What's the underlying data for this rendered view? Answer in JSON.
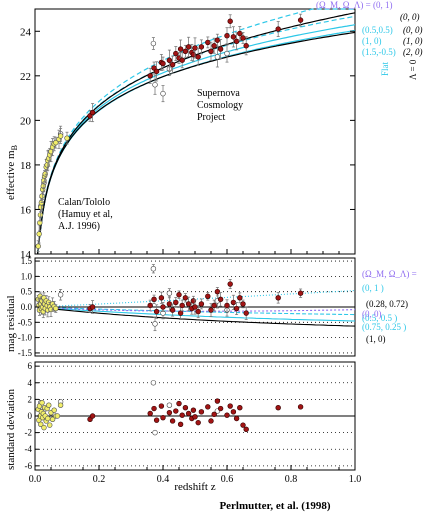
{
  "figure": {
    "credit": "Perlmutter, et al. (1998)",
    "colors": {
      "cyan": "#2ec8e8",
      "violet": "#8f6cf0",
      "yellow_point": "#f1ee6a",
      "red_point": "#a11414",
      "open_point": "#ffffff",
      "error_bar": "#7b7b7b",
      "axis": "#000000"
    }
  },
  "chart_data": [
    {
      "type": "scatter",
      "panel": "top",
      "ylabel": "effective m",
      "ylabel_sub": "B",
      "xlim": [
        0.0,
        1.0
      ],
      "ylim": [
        14,
        25
      ],
      "yticks": [
        14,
        16,
        18,
        20,
        22,
        24
      ],
      "annotations": {
        "scp": [
          "Supernova",
          "Cosmology",
          "Project"
        ],
        "calan": [
          "Calan/Tololo",
          "(Hamuy et al,",
          "A.J. 1996)"
        ]
      },
      "legend": {
        "header": "(Ω_M, Ω_Λ) = (0, 1)",
        "flat_label": "Flat",
        "lambda0_label": "Λ = 0",
        "entries": [
          {
            "left": "(0.5,0.5)",
            "right": "(0, 0)"
          },
          {
            "left": "(1, 0)",
            "right": "(1, 0)"
          },
          {
            "left": "(1.5,-0.5)",
            "right": "(2, 0)"
          }
        ],
        "top_right": "(0, 0)"
      },
      "curves": [
        {
          "name": "(0, 1)",
          "style": "cyan-dashed",
          "omega_m": 0.0,
          "omega_l": 1.0
        },
        {
          "name": "(0.5, 0.5)",
          "style": "cyan-dashed",
          "omega_m": 0.5,
          "omega_l": 0.5
        },
        {
          "name": "(1, 0)",
          "style": "cyan-solid",
          "omega_m": 1.0,
          "omega_l": 0.0
        },
        {
          "name": "(1.5, -0.5)",
          "style": "cyan-solid",
          "omega_m": 1.5,
          "omega_l": -0.5
        },
        {
          "name": "(0, 0)",
          "style": "black-solid",
          "omega_m": 0.0,
          "omega_l": 0.0
        },
        {
          "name": "(2, 0)",
          "style": "black-solid",
          "omega_m": 2.0,
          "omega_l": 0.0
        }
      ],
      "points_low_z": [
        {
          "x": 0.01,
          "y": 14.35
        },
        {
          "x": 0.013,
          "y": 14.9
        },
        {
          "x": 0.015,
          "y": 15.4
        },
        {
          "x": 0.017,
          "y": 15.75
        },
        {
          "x": 0.018,
          "y": 16.1
        },
        {
          "x": 0.02,
          "y": 16.3
        },
        {
          "x": 0.022,
          "y": 16.6
        },
        {
          "x": 0.024,
          "y": 16.9
        },
        {
          "x": 0.026,
          "y": 17.05
        },
        {
          "x": 0.028,
          "y": 17.3
        },
        {
          "x": 0.03,
          "y": 17.5
        },
        {
          "x": 0.032,
          "y": 17.6
        },
        {
          "x": 0.035,
          "y": 17.9
        },
        {
          "x": 0.038,
          "y": 18.0
        },
        {
          "x": 0.04,
          "y": 18.2
        },
        {
          "x": 0.043,
          "y": 18.3
        },
        {
          "x": 0.046,
          "y": 18.45
        },
        {
          "x": 0.05,
          "y": 18.6
        },
        {
          "x": 0.055,
          "y": 18.8
        },
        {
          "x": 0.06,
          "y": 18.95
        },
        {
          "x": 0.065,
          "y": 19.0
        },
        {
          "x": 0.075,
          "y": 19.15
        },
        {
          "x": 0.08,
          "y": 19.3
        },
        {
          "x": 0.1,
          "y": 19.2
        }
      ],
      "points_high_z": [
        {
          "x": 0.172,
          "y": 20.2
        },
        {
          "x": 0.18,
          "y": 20.35
        },
        {
          "x": 0.36,
          "y": 22.0
        },
        {
          "x": 0.372,
          "y": 22.35
        },
        {
          "x": 0.38,
          "y": 22.2
        },
        {
          "x": 0.395,
          "y": 22.6
        },
        {
          "x": 0.4,
          "y": 22.55
        },
        {
          "x": 0.42,
          "y": 22.7
        },
        {
          "x": 0.43,
          "y": 22.5
        },
        {
          "x": 0.44,
          "y": 23.0
        },
        {
          "x": 0.45,
          "y": 22.8
        },
        {
          "x": 0.455,
          "y": 23.2
        },
        {
          "x": 0.46,
          "y": 22.7
        },
        {
          "x": 0.47,
          "y": 23.1
        },
        {
          "x": 0.48,
          "y": 23.3
        },
        {
          "x": 0.49,
          "y": 23.05
        },
        {
          "x": 0.495,
          "y": 22.95
        },
        {
          "x": 0.5,
          "y": 23.25
        },
        {
          "x": 0.51,
          "y": 22.85
        },
        {
          "x": 0.52,
          "y": 23.3
        },
        {
          "x": 0.54,
          "y": 23.5
        },
        {
          "x": 0.55,
          "y": 23.1
        },
        {
          "x": 0.56,
          "y": 23.35
        },
        {
          "x": 0.57,
          "y": 23.6
        },
        {
          "x": 0.58,
          "y": 23.2
        },
        {
          "x": 0.6,
          "y": 23.8
        },
        {
          "x": 0.61,
          "y": 24.45
        },
        {
          "x": 0.62,
          "y": 23.75
        },
        {
          "x": 0.63,
          "y": 23.55
        },
        {
          "x": 0.64,
          "y": 23.9
        },
        {
          "x": 0.65,
          "y": 23.7
        },
        {
          "x": 0.66,
          "y": 23.35
        },
        {
          "x": 0.76,
          "y": 24.1
        },
        {
          "x": 0.83,
          "y": 24.5
        }
      ],
      "points_open": [
        {
          "x": 0.018,
          "y": 16.15
        },
        {
          "x": 0.028,
          "y": 17.2
        },
        {
          "x": 0.08,
          "y": 19.4
        },
        {
          "x": 0.37,
          "y": 23.45
        },
        {
          "x": 0.375,
          "y": 21.6
        },
        {
          "x": 0.4,
          "y": 21.2
        },
        {
          "x": 0.42,
          "y": 22.3
        },
        {
          "x": 0.57,
          "y": 22.85
        },
        {
          "x": 0.6,
          "y": 23.0
        }
      ]
    },
    {
      "type": "scatter",
      "panel": "middle",
      "ylabel": "mag residual",
      "xlim": [
        0.0,
        1.0
      ],
      "ylim": [
        -1.6,
        1.6
      ],
      "yticks": [
        -1.5,
        -1.0,
        -0.5,
        0.0,
        0.5,
        1.0,
        1.5
      ],
      "legend": {
        "header": "(Ω_M, Ω_Λ) =",
        "entries": [
          {
            "text": "(0,      1 )",
            "color": "cyan"
          },
          {
            "text": "(0.28,   0.72)",
            "color": "black"
          },
          {
            "text": "(0.5,    0.5 )",
            "color": "cyan"
          },
          {
            "text": "(0,      0)",
            "color": "violet"
          },
          {
            "text": "(0.75,   0.25 )",
            "color": "cyan"
          },
          {
            "text": "(1,      0)",
            "color": "black"
          }
        ]
      },
      "points_low_z": [
        {
          "x": 0.01,
          "y": 0.25
        },
        {
          "x": 0.012,
          "y": 0.05
        },
        {
          "x": 0.014,
          "y": -0.1
        },
        {
          "x": 0.016,
          "y": 0.35
        },
        {
          "x": 0.018,
          "y": 0.1
        },
        {
          "x": 0.02,
          "y": -0.05
        },
        {
          "x": 0.022,
          "y": 0.2
        },
        {
          "x": 0.024,
          "y": 0.0
        },
        {
          "x": 0.026,
          "y": -0.15
        },
        {
          "x": 0.028,
          "y": 0.3
        },
        {
          "x": 0.03,
          "y": 0.1
        },
        {
          "x": 0.032,
          "y": -0.05
        },
        {
          "x": 0.035,
          "y": 0.2
        },
        {
          "x": 0.038,
          "y": 0.05
        },
        {
          "x": 0.04,
          "y": -0.1
        },
        {
          "x": 0.043,
          "y": 0.15
        },
        {
          "x": 0.046,
          "y": 0.0
        },
        {
          "x": 0.05,
          "y": -0.08
        },
        {
          "x": 0.055,
          "y": 0.1
        },
        {
          "x": 0.06,
          "y": 0.02
        },
        {
          "x": 0.065,
          "y": -0.05
        }
      ],
      "points_high_z": [
        {
          "x": 0.172,
          "y": -0.05
        },
        {
          "x": 0.18,
          "y": 0.0
        },
        {
          "x": 0.36,
          "y": 0.05
        },
        {
          "x": 0.372,
          "y": 0.25
        },
        {
          "x": 0.38,
          "y": -0.15
        },
        {
          "x": 0.395,
          "y": 0.3
        },
        {
          "x": 0.4,
          "y": 0.0
        },
        {
          "x": 0.42,
          "y": 0.1
        },
        {
          "x": 0.43,
          "y": -0.1
        },
        {
          "x": 0.44,
          "y": 0.15
        },
        {
          "x": 0.45,
          "y": 0.4
        },
        {
          "x": 0.455,
          "y": -0.2
        },
        {
          "x": 0.46,
          "y": 0.05
        },
        {
          "x": 0.47,
          "y": 0.3
        },
        {
          "x": 0.48,
          "y": 0.1
        },
        {
          "x": 0.49,
          "y": -0.05
        },
        {
          "x": 0.495,
          "y": 0.2
        },
        {
          "x": 0.5,
          "y": 0.0
        },
        {
          "x": 0.51,
          "y": -0.15
        },
        {
          "x": 0.52,
          "y": 0.1
        },
        {
          "x": 0.54,
          "y": 0.35
        },
        {
          "x": 0.55,
          "y": -0.1
        },
        {
          "x": 0.56,
          "y": 0.05
        },
        {
          "x": 0.57,
          "y": 0.5
        },
        {
          "x": 0.58,
          "y": 0.25
        },
        {
          "x": 0.6,
          "y": 0.05
        },
        {
          "x": 0.61,
          "y": 0.75
        },
        {
          "x": 0.62,
          "y": 0.15
        },
        {
          "x": 0.63,
          "y": -0.05
        },
        {
          "x": 0.64,
          "y": 0.3
        },
        {
          "x": 0.65,
          "y": 0.1
        },
        {
          "x": 0.66,
          "y": -0.2
        },
        {
          "x": 0.76,
          "y": 0.3
        },
        {
          "x": 0.83,
          "y": 0.45
        }
      ],
      "points_open": [
        {
          "x": 0.018,
          "y": 0.3
        },
        {
          "x": 0.028,
          "y": 0.15
        },
        {
          "x": 0.08,
          "y": 0.4
        },
        {
          "x": 0.37,
          "y": 1.25
        },
        {
          "x": 0.375,
          "y": -0.55
        },
        {
          "x": 0.4,
          "y": -0.2
        },
        {
          "x": 0.42,
          "y": 0.45
        },
        {
          "x": 0.57,
          "y": 0.2
        },
        {
          "x": 0.6,
          "y": -0.1
        }
      ]
    },
    {
      "type": "scatter",
      "panel": "bottom",
      "xlabel": "redshift z",
      "ylabel": "standard deviation",
      "xlim": [
        0.0,
        1.0
      ],
      "ylim": [
        -6.5,
        6.5
      ],
      "xticks": [
        0.0,
        0.2,
        0.4,
        0.6,
        0.8,
        1.0
      ],
      "yticks": [
        -6,
        -4,
        -2,
        0,
        2,
        4,
        6
      ],
      "points_low_z": [
        {
          "x": 0.01,
          "y": 0.8
        },
        {
          "x": 0.012,
          "y": -0.5
        },
        {
          "x": 0.014,
          "y": 1.2
        },
        {
          "x": 0.016,
          "y": 0.0
        },
        {
          "x": 0.018,
          "y": -1.0
        },
        {
          "x": 0.02,
          "y": 0.5
        },
        {
          "x": 0.022,
          "y": 1.6
        },
        {
          "x": 0.024,
          "y": -0.2
        },
        {
          "x": 0.026,
          "y": 0.3
        },
        {
          "x": 0.028,
          "y": -1.4
        },
        {
          "x": 0.03,
          "y": 1.0
        },
        {
          "x": 0.032,
          "y": 0.0
        },
        {
          "x": 0.035,
          "y": -0.6
        },
        {
          "x": 0.038,
          "y": 0.9
        },
        {
          "x": 0.04,
          "y": -0.3
        },
        {
          "x": 0.043,
          "y": 1.3
        },
        {
          "x": 0.046,
          "y": -1.1
        },
        {
          "x": 0.05,
          "y": 0.4
        },
        {
          "x": 0.055,
          "y": -0.4
        },
        {
          "x": 0.06,
          "y": 0.7
        },
        {
          "x": 0.065,
          "y": 0.0
        },
        {
          "x": 0.07,
          "y": 0.0
        },
        {
          "x": 0.08,
          "y": 1.3
        }
      ],
      "points_high_z": [
        {
          "x": 0.172,
          "y": -0.4
        },
        {
          "x": 0.18,
          "y": 0.0
        },
        {
          "x": 0.36,
          "y": 0.3
        },
        {
          "x": 0.372,
          "y": 0.9
        },
        {
          "x": 0.38,
          "y": -0.5
        },
        {
          "x": 0.395,
          "y": 1.2
        },
        {
          "x": 0.4,
          "y": -0.2
        },
        {
          "x": 0.42,
          "y": 0.4
        },
        {
          "x": 0.43,
          "y": -0.6
        },
        {
          "x": 0.44,
          "y": 0.6
        },
        {
          "x": 0.45,
          "y": 1.5
        },
        {
          "x": 0.455,
          "y": -1.0
        },
        {
          "x": 0.46,
          "y": 0.1
        },
        {
          "x": 0.47,
          "y": 1.0
        },
        {
          "x": 0.48,
          "y": 0.3
        },
        {
          "x": 0.49,
          "y": -0.3
        },
        {
          "x": 0.495,
          "y": 0.7
        },
        {
          "x": 0.5,
          "y": -0.1
        },
        {
          "x": 0.51,
          "y": -0.8
        },
        {
          "x": 0.52,
          "y": 0.5
        },
        {
          "x": 0.54,
          "y": 1.1
        },
        {
          "x": 0.55,
          "y": -0.6
        },
        {
          "x": 0.56,
          "y": 0.2
        },
        {
          "x": 0.57,
          "y": 1.8
        },
        {
          "x": 0.58,
          "y": 0.9
        },
        {
          "x": 0.6,
          "y": 0.1
        },
        {
          "x": 0.61,
          "y": 1.2
        },
        {
          "x": 0.62,
          "y": 0.5
        },
        {
          "x": 0.63,
          "y": -0.3
        },
        {
          "x": 0.64,
          "y": 1.0
        },
        {
          "x": 0.65,
          "y": -1.1
        },
        {
          "x": 0.66,
          "y": -1.6
        },
        {
          "x": 0.76,
          "y": 1.0
        },
        {
          "x": 0.83,
          "y": 1.1
        }
      ],
      "points_open": [
        {
          "x": 0.018,
          "y": 1.6
        },
        {
          "x": 0.028,
          "y": 0.7
        },
        {
          "x": 0.08,
          "y": 1.7
        },
        {
          "x": 0.37,
          "y": 4.0
        },
        {
          "x": 0.375,
          "y": -2.0
        },
        {
          "x": 0.42,
          "y": 1.3
        },
        {
          "x": 0.57,
          "y": 0.6
        }
      ]
    }
  ]
}
